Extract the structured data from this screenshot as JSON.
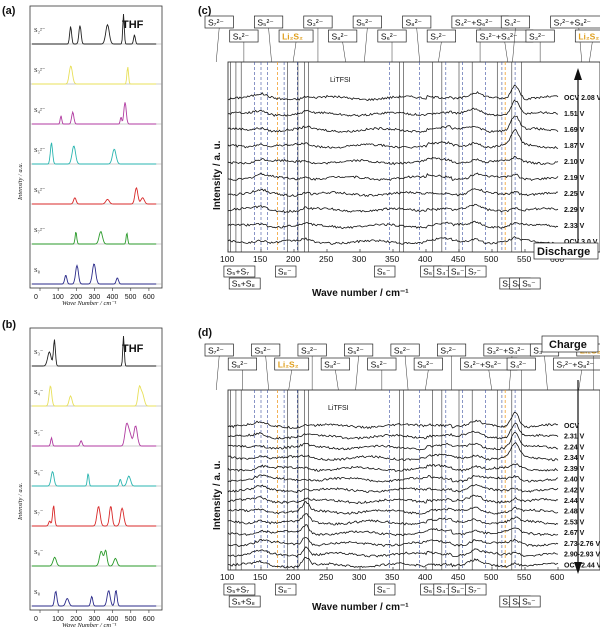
{
  "panel_labels": {
    "a": "(a)",
    "b": "(b)",
    "c": "(c)",
    "d": "(d)"
  },
  "solvent": "THF",
  "calc_axis": {
    "xlabel": "Wave Number / cm⁻¹",
    "ylabel": "Intensity / a.u.",
    "ticks": [
      "0",
      "100",
      "200",
      "300",
      "400",
      "500",
      "600"
    ]
  },
  "exp_axis": {
    "xlabel": "Wave number / cm⁻¹",
    "ylabel": "Intensity / a. u.",
    "ticks": [
      "100",
      "150",
      "200",
      "250",
      "300",
      "350",
      "400",
      "450",
      "500",
      "550",
      "600"
    ]
  },
  "panel_a_species": [
    "S₂²⁻",
    "S₃²⁻",
    "S₄²⁻",
    "S₅²⁻",
    "S₆²⁻",
    "S₇²⁻",
    "S₈"
  ],
  "panel_b_species": [
    "S₃⁻",
    "S₄⁻",
    "S₅⁻",
    "S₆⁻",
    "S₇⁻",
    "S₈⁻",
    "S₈"
  ],
  "trace_colors": [
    "#222222",
    "#e8e05a",
    "#b03aa0",
    "#2ab5b0",
    "#d82828",
    "#2a9a2a",
    "#2a2a8a"
  ],
  "panel_c": {
    "mode": "Discharge",
    "lithf": "LiTFSI",
    "voltages": [
      "OCV 2.08 V",
      "1.51 V",
      "1.69 V",
      "1.87 V",
      "2.10 V",
      "2.19 V",
      "2.25 V",
      "2.29 V",
      "2.33 V",
      "OCV 3.0 V"
    ],
    "top_labels": [
      "S₇²⁻",
      "S₆²⁻",
      "S₅²⁻",
      "Li₂S₂",
      "S₃²⁻",
      "S₈²⁻",
      "S₅²⁻",
      "S₆²⁻",
      "S₈²⁻",
      "S₇²⁻",
      "S₄²⁻+S₆²⁻",
      "S₃²⁻+S₄²⁻",
      "S₄²⁻",
      "S₃²⁻",
      "S₇²⁻+S₈²⁻",
      "Li₂S₂"
    ],
    "bottom_labels": [
      "S₅+S₇",
      "S₅+S₈",
      "S₈⁻",
      "S₆⁻",
      "S₆⁻",
      "S₄⁻",
      "S₈⁻",
      "S₇⁻",
      "S₃⁻",
      "S₆⁻",
      "S₅⁻"
    ]
  },
  "panel_d": {
    "mode": "Charge",
    "lithf": "LiTFSI",
    "voltages": [
      "OCV",
      "2.31 V",
      "2.24 V",
      "2.34 V",
      "2.39 V",
      "2.40 V",
      "2.42 V",
      "2.44 V",
      "2.48 V",
      "2.53 V",
      "2.67 V",
      "2.73-2.76 V",
      "2.90-2.93 V",
      "OCV 2.44 V"
    ],
    "top_labels": [
      "S₇²⁻",
      "S₈²⁻",
      "S₅²⁻",
      "Li₂S₂",
      "S₃²⁻",
      "S₈²⁻",
      "S₅²⁻",
      "S₆²⁻",
      "S₆²⁻",
      "S₈²⁻",
      "S₇²⁻",
      "S₄²⁻+S₆²⁻",
      "S₃²⁻+S₄²⁻",
      "S₄²⁻",
      "S₃²⁻",
      "S₇²⁻+S₈²⁻",
      "Li₂S₂"
    ],
    "bottom_labels": [
      "S₅+S₇",
      "S₅+S₈",
      "S₈⁻",
      "S₆⁻",
      "S₆⁻",
      "S₄⁻",
      "S₈⁻",
      "S₇⁻",
      "S₃⁻",
      "S₆⁻",
      "S₅⁻"
    ]
  }
}
